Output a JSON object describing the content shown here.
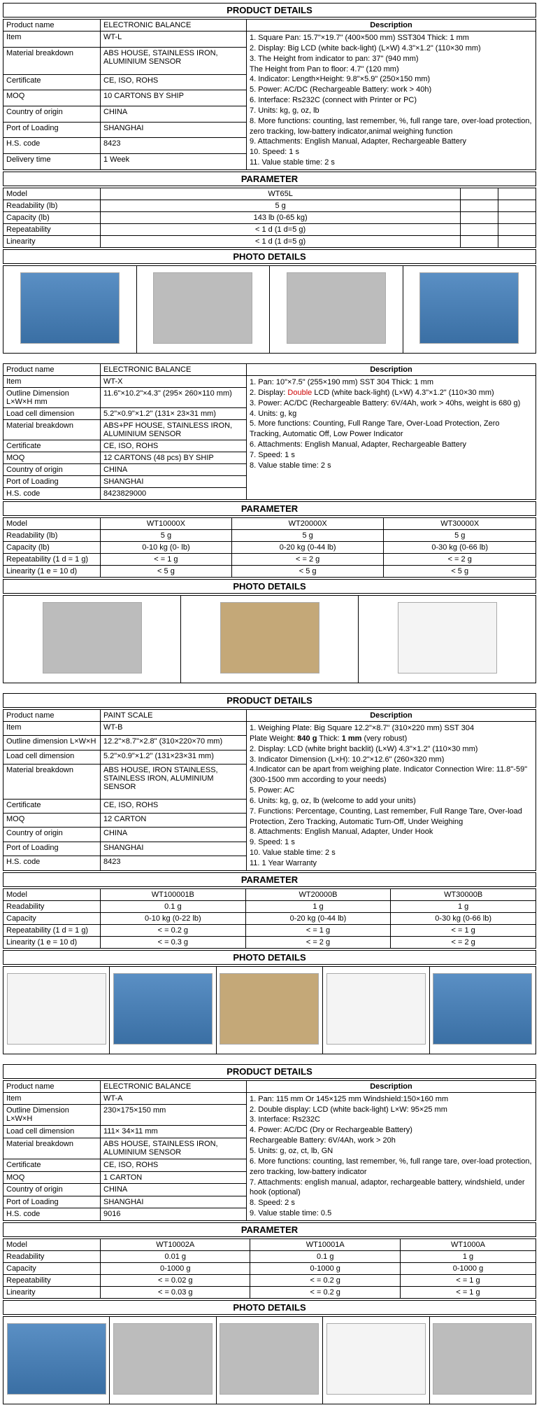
{
  "sections": [
    {
      "title": "PRODUCT DETAILS",
      "details": [
        [
          "Product name",
          "ELECTRONIC BALANCE"
        ],
        [
          "Item",
          "WT-L"
        ],
        [
          "Material breakdown",
          "ABS HOUSE, STAINLESS IRON, ALUMINIUM SENSOR"
        ],
        [
          "Certificate",
          "CE, ISO, ROHS"
        ],
        [
          "MOQ",
          "10 CARTONS BY SHIP"
        ],
        [
          "Country of origin",
          "CHINA"
        ],
        [
          "Port of Loading",
          "SHANGHAI"
        ],
        [
          "H.S. code",
          "8423"
        ],
        [
          "Delivery time",
          "1 Week"
        ]
      ],
      "desc_title": "Description",
      "desc": "1. Square Pan: 15.7\"×19.7\" (400×500 mm)  SST304 Thick: 1 mm\n2. Display: Big LCD (white back-light) (L×W) 4.3\"×1.2\" (110×30 mm)\n3. The Height from indicator to pan:  37\" (940 mm)\nThe Height from Pan to floor: 4.7\" (120 mm)\n4. Indicator: Length×Height: 9.8\"×5.9\" (250×150 mm)\n5. Power: AC/DC (Rechargeable Battery: work > 40h)\n6. Interface: Rs232C (connect with Printer or PC)\n7. Units: kg, g, oz, lb\n8. More functions: counting, last remember, %, full range tare, over-load protection, zero tracking, low-battery indicator,animal weighing function\n9. Attachments: English Manual, Adapter, Rechargeable Battery\n10. Speed: 1 s\n11. Value stable time: 2 s",
      "param_title": "PARAMETER",
      "param_cols": [
        "Model",
        "WT65L",
        "",
        ""
      ],
      "param_rows": [
        [
          "Readability (lb)",
          "5 g",
          "",
          ""
        ],
        [
          "Capacity (lb)",
          "143 lb (0-65 kg)",
          "",
          ""
        ],
        [
          "Repeatability",
          "< 1 d (1 d=5 g)",
          "",
          ""
        ],
        [
          "Linearity",
          "< 1 d (1 d=5 g)",
          "",
          ""
        ]
      ],
      "photo_title": "PHOTO DETAILS",
      "photos": 4,
      "photo_classes": [
        "ph-blue",
        "ph-gray",
        "ph-gray",
        "ph-blue"
      ]
    },
    {
      "details": [
        [
          "Product name",
          "ELECTRONIC BALANCE"
        ],
        [
          "Item",
          "WT-X"
        ],
        [
          "Outline Dimension L×W×H mm",
          "11.6\"×10.2\"×4.3\" (295× 260×110 mm)"
        ],
        [
          "Load cell dimension",
          "5.2\"×0.9\"×1.2\" (131× 23×31 mm)"
        ],
        [
          "Material breakdown",
          "ABS+PF HOUSE, STAINLESS IRON, ALUMINIUM SENSOR"
        ],
        [
          "Certificate",
          "CE, ISO, ROHS"
        ],
        [
          "MOQ",
          "12 CARTONS (48 pcs) BY SHIP"
        ],
        [
          "Country of origin",
          "CHINA"
        ],
        [
          "Port of Loading",
          "SHANGHAI"
        ],
        [
          "H.S. code",
          "8423829000"
        ]
      ],
      "desc_title": "Description",
      "desc": "1. Pan: 10\"×7.5\" (255×190 mm) SST 304 Thick: 1 mm\n2. Display: <span class=\"red\">Double</span> LCD (white back-light) (L×W) 4.3\"×1.2\" (110×30 mm)\n3. Power: AC/DC (Rechargeable Battery: 6V/4Ah, work > 40hs, weight is 680 g)\n4. Units: g, kg\n5. More functions: Counting, Full Range Tare, Over-Load Protection, Zero Tracking, Automatic Off, Low Power Indicator\n6. Attachments: English Manual, Adapter, Rechargeable Battery\n7. Speed: 1 s\n8. Value stable time: 2 s",
      "param_title": "PARAMETER",
      "param_cols": [
        "Model",
        "WT10000X",
        "WT20000X",
        "WT30000X"
      ],
      "param_rows": [
        [
          "Readability (lb)",
          "5 g",
          "5 g",
          "5 g"
        ],
        [
          "Capacity (lb)",
          "0-10 kg (0- lb)",
          "0-20 kg (0-44 lb)",
          "0-30 kg (0-66 lb)"
        ],
        [
          "Repeatability (1 d = 1 g)",
          "< = 1 g",
          "< = 2 g",
          "< = 2 g"
        ],
        [
          "Linearity (1 e = 10 d)",
          "< 5 g",
          "< 5 g",
          "< 5 g"
        ]
      ],
      "photo_title": "PHOTO DETAILS",
      "photos": 3,
      "photo_classes": [
        "ph-gray",
        "ph-box",
        "ph-white"
      ]
    },
    {
      "title": "PRODUCT DETAILS",
      "details": [
        [
          "Product name",
          "PAINT SCALE"
        ],
        [
          "Item",
          "WT-B"
        ],
        [
          "Outline dimension L×W×H",
          "12.2\"×8.7\"×2.8\" (310×220×70 mm)"
        ],
        [
          "Load cell dimension",
          "5.2\"×0.9\"×1.2\" (131×23×31 mm)"
        ],
        [
          "Material breakdown",
          "ABS HOUSE, IRON STAINLESS, STAINLESS IRON, ALUMINIUM SENSOR"
        ],
        [
          "Certificate",
          "CE, ISO, ROHS"
        ],
        [
          "MOQ",
          "12 CARTON"
        ],
        [
          "Country of origin",
          "CHINA"
        ],
        [
          "Port of Loading",
          "SHANGHAI"
        ],
        [
          "H.S. code",
          "8423"
        ]
      ],
      "desc_title": "Description",
      "desc": "1. Weighing Plate: Big Square 12.2\"×8.7\" (310×220 mm) SST 304\nPlate Weight: <b>840 g</b>   Thick: <b>1 mm</b> (very robust)\n2. Display: LCD (white bright backlit) (L×W) 4.3\"×1.2\" (110×30 mm)\n3. Indicator Dimension (L×H):  10.2\"×12.6\" (260×320 mm)\n4.Indicator can be apart from weighing plate. Indicator Connection Wire: 11.8\"-59\" (300-1500 mm according to your needs)\n5. Power: AC\n6. Units:  kg, g, oz, lb (welcome to add your units)\n7. Functions: Percentage, Counting, Last remember, Full Range Tare, Over-load Protection, Zero Tracking, Automatic Turn-Off, Under Weighing\n8. Attachments: English Manual, Adapter, Under Hook\n9. Speed: 1 s\n10. Value stable time: 2 s\n11. 1 Year Warranty",
      "param_title": "PARAMETER",
      "param_cols": [
        "Model",
        "WT100001B",
        "WT20000B",
        "WT30000B"
      ],
      "param_rows": [
        [
          "Readability",
          "0.1 g",
          "1 g",
          "1 g"
        ],
        [
          "Capacity",
          "0-10 kg (0-22 lb)",
          "0-20 kg (0-44 lb)",
          "0-30 kg (0-66 lb)"
        ],
        [
          "Repeatability (1 d = 1 g)",
          "< = 0.2 g",
          "< = 1 g",
          "< = 1 g"
        ],
        [
          "Linearity (1 e = 10 d)",
          "< = 0.3 g",
          "< = 2 g",
          "< = 2 g"
        ]
      ],
      "photo_title": "PHOTO DETAILS",
      "photos": 5,
      "photo_classes": [
        "ph-white",
        "ph-blue",
        "ph-box",
        "ph-white",
        "ph-blue"
      ]
    },
    {
      "title": "PRODUCT DETAILS",
      "details": [
        [
          "Product name",
          "ELECTRONIC BALANCE"
        ],
        [
          "Item",
          "WT-A"
        ],
        [
          "Outline Dimension L×W×H",
          "230×175×150 mm"
        ],
        [
          "Load cell dimension",
          "111× 34×11 mm"
        ],
        [
          "Material breakdown",
          "ABS HOUSE, STAINLESS IRON, ALUMINIUM SENSOR"
        ],
        [
          "Certificate",
          "CE, ISO, ROHS"
        ],
        [
          "MOQ",
          "1 CARTON"
        ],
        [
          "Country of origin",
          "CHINA"
        ],
        [
          "Port of Loading",
          "SHANGHAI"
        ],
        [
          "H.S. code",
          "9016"
        ]
      ],
      "desc_title": "Description",
      "desc": "1. Pan: 115 mm Or 145×125 mm   Windshield:150×160 mm\n2. Double display:  LCD (white back-light)   L×W: 95×25 mm\n3. Interface: Rs232C\n4. Power: AC/DC (Dry or Rechargeable Battery)\n    Rechargeable Battery: 6V/4Ah, work > 20h\n5. Units: g, oz, ct, lb, GN\n6. More functions: counting, last remember, %, full range tare, over-load protection, zero tracking, low-battery indicator\n7. Attachments: english manual, adaptor, rechargeable battery, windshield, under hook (optional)\n8. Speed: 2 s\n9. Value stable time: 0.5",
      "param_title": "PARAMETER",
      "param_cols": [
        "Model",
        "WT10002A",
        "WT10001A",
        "WT1000A"
      ],
      "param_rows": [
        [
          "Readability",
          "0.01 g",
          "0.1 g",
          "1 g"
        ],
        [
          "Capacity",
          "0-1000 g",
          "0-1000 g",
          "0-1000 g"
        ],
        [
          "Repeatability",
          "< = 0.02 g",
          "< = 0.2 g",
          "< = 1 g"
        ],
        [
          "Linearity",
          "< = 0.03 g",
          "< = 0.2 g",
          "< = 1 g"
        ]
      ],
      "photo_title": "PHOTO DETAILS",
      "photos": 5,
      "photo_classes": [
        "ph-blue",
        "ph-gray",
        "ph-gray",
        "ph-white",
        "ph-gray"
      ]
    }
  ]
}
